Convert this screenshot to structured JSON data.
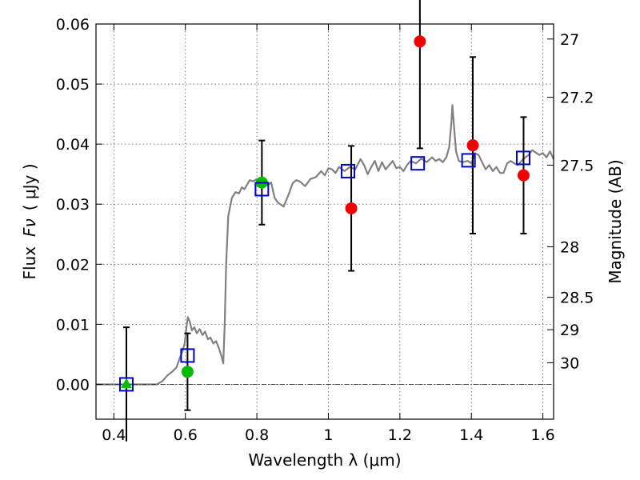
{
  "chart_data": {
    "type": "scatter",
    "xlabel": "Wavelength  λ (μm)",
    "ylabel_left": {
      "text": "Flux",
      "symbol": "Fν",
      "unit": "( μJy )"
    },
    "ylabel_right": "Magnitude (AB)",
    "xlim": [
      0.35,
      1.63
    ],
    "ylim": [
      -0.0058,
      0.06
    ],
    "grid": true,
    "x_ticks": [
      {
        "value": 0.4,
        "label": "0.4"
      },
      {
        "value": 0.6,
        "label": "0.6"
      },
      {
        "value": 0.8,
        "label": "0.8"
      },
      {
        "value": 1.0,
        "label": "1"
      },
      {
        "value": 1.2,
        "label": "1.2"
      },
      {
        "value": 1.4,
        "label": "1.4"
      },
      {
        "value": 1.6,
        "label": "1.6"
      }
    ],
    "y_ticks": [
      {
        "value": 0.0,
        "label": "0.00"
      },
      {
        "value": 0.01,
        "label": "0.01"
      },
      {
        "value": 0.02,
        "label": "0.02"
      },
      {
        "value": 0.03,
        "label": "0.03"
      },
      {
        "value": 0.04,
        "label": "0.04"
      },
      {
        "value": 0.05,
        "label": "0.05"
      },
      {
        "value": 0.06,
        "label": "0.06"
      }
    ],
    "right_ticks": [
      {
        "flux": 0.0575,
        "label": "27"
      },
      {
        "flux": 0.0478,
        "label": "27.2"
      },
      {
        "flux": 0.0365,
        "label": "27.5"
      },
      {
        "flux": 0.0229,
        "label": "28"
      },
      {
        "flux": 0.0145,
        "label": "28.5"
      },
      {
        "flux": 0.0091,
        "label": "29"
      },
      {
        "flux": 0.0036,
        "label": "30"
      }
    ],
    "colors": {
      "sed": "#808080",
      "model": "#0000cc",
      "red": "#ee0000",
      "green": "#00bb00",
      "error": "#000000",
      "grid": "#555555"
    },
    "sed_model_curve": [
      [
        0.35,
        0.0
      ],
      [
        0.52,
        0.0
      ],
      [
        0.535,
        0.0005
      ],
      [
        0.55,
        0.0015
      ],
      [
        0.565,
        0.0022
      ],
      [
        0.575,
        0.0028
      ],
      [
        0.585,
        0.0045
      ],
      [
        0.592,
        0.0055
      ],
      [
        0.598,
        0.0068
      ],
      [
        0.603,
        0.0095
      ],
      [
        0.607,
        0.0112
      ],
      [
        0.612,
        0.0105
      ],
      [
        0.618,
        0.009
      ],
      [
        0.625,
        0.0095
      ],
      [
        0.632,
        0.0085
      ],
      [
        0.64,
        0.0092
      ],
      [
        0.648,
        0.0082
      ],
      [
        0.655,
        0.0088
      ],
      [
        0.663,
        0.0075
      ],
      [
        0.67,
        0.0078
      ],
      [
        0.678,
        0.0068
      ],
      [
        0.686,
        0.0072
      ],
      [
        0.695,
        0.0058
      ],
      [
        0.702,
        0.0045
      ],
      [
        0.706,
        0.0035
      ],
      [
        0.71,
        0.01
      ],
      [
        0.714,
        0.02
      ],
      [
        0.72,
        0.028
      ],
      [
        0.73,
        0.031
      ],
      [
        0.74,
        0.032
      ],
      [
        0.75,
        0.0318
      ],
      [
        0.758,
        0.0328
      ],
      [
        0.765,
        0.0325
      ],
      [
        0.772,
        0.0332
      ],
      [
        0.78,
        0.034
      ],
      [
        0.79,
        0.0338
      ],
      [
        0.8,
        0.0342
      ],
      [
        0.81,
        0.0336
      ],
      [
        0.82,
        0.0342
      ],
      [
        0.83,
        0.0332
      ],
      [
        0.84,
        0.0336
      ],
      [
        0.85,
        0.031
      ],
      [
        0.86,
        0.0302
      ],
      [
        0.875,
        0.0296
      ],
      [
        0.89,
        0.0318
      ],
      [
        0.9,
        0.0335
      ],
      [
        0.91,
        0.034
      ],
      [
        0.92,
        0.0338
      ],
      [
        0.935,
        0.033
      ],
      [
        0.95,
        0.0342
      ],
      [
        0.965,
        0.0345
      ],
      [
        0.98,
        0.0355
      ],
      [
        0.99,
        0.0348
      ],
      [
        1.0,
        0.036
      ],
      [
        1.01,
        0.0358
      ],
      [
        1.02,
        0.0352
      ],
      [
        1.03,
        0.0362
      ],
      [
        1.045,
        0.0355
      ],
      [
        1.06,
        0.0362
      ],
      [
        1.075,
        0.0358
      ],
      [
        1.09,
        0.0375
      ],
      [
        1.1,
        0.0365
      ],
      [
        1.11,
        0.035
      ],
      [
        1.12,
        0.0362
      ],
      [
        1.13,
        0.0372
      ],
      [
        1.14,
        0.0355
      ],
      [
        1.15,
        0.037
      ],
      [
        1.16,
        0.0358
      ],
      [
        1.17,
        0.0365
      ],
      [
        1.18,
        0.0372
      ],
      [
        1.19,
        0.036
      ],
      [
        1.2,
        0.0362
      ],
      [
        1.21,
        0.0355
      ],
      [
        1.22,
        0.0365
      ],
      [
        1.23,
        0.0372
      ],
      [
        1.245,
        0.0368
      ],
      [
        1.26,
        0.0376
      ],
      [
        1.275,
        0.037
      ],
      [
        1.29,
        0.0378
      ],
      [
        1.3,
        0.0372
      ],
      [
        1.31,
        0.0375
      ],
      [
        1.32,
        0.037
      ],
      [
        1.33,
        0.0378
      ],
      [
        1.338,
        0.0395
      ],
      [
        1.344,
        0.0435
      ],
      [
        1.347,
        0.0465
      ],
      [
        1.352,
        0.0425
      ],
      [
        1.357,
        0.0388
      ],
      [
        1.365,
        0.0372
      ],
      [
        1.375,
        0.037
      ],
      [
        1.39,
        0.0372
      ],
      [
        1.4,
        0.0368
      ],
      [
        1.41,
        0.0385
      ],
      [
        1.42,
        0.0382
      ],
      [
        1.43,
        0.037
      ],
      [
        1.44,
        0.0358
      ],
      [
        1.45,
        0.0365
      ],
      [
        1.46,
        0.0355
      ],
      [
        1.47,
        0.0362
      ],
      [
        1.48,
        0.0352
      ],
      [
        1.49,
        0.0352
      ],
      [
        1.5,
        0.0368
      ],
      [
        1.51,
        0.0372
      ],
      [
        1.52,
        0.0368
      ],
      [
        1.53,
        0.0365
      ],
      [
        1.545,
        0.0375
      ],
      [
        1.56,
        0.0382
      ],
      [
        1.57,
        0.039
      ],
      [
        1.58,
        0.0386
      ],
      [
        1.59,
        0.0382
      ],
      [
        1.6,
        0.0385
      ],
      [
        1.61,
        0.0378
      ],
      [
        1.62,
        0.0388
      ],
      [
        1.63,
        0.0375
      ]
    ],
    "model_photometry": [
      {
        "x": 0.435,
        "y": 0.0
      },
      {
        "x": 0.606,
        "y": 0.0048
      },
      {
        "x": 0.814,
        "y": 0.0325
      },
      {
        "x": 1.055,
        "y": 0.0355
      },
      {
        "x": 1.25,
        "y": 0.0368
      },
      {
        "x": 1.392,
        "y": 0.0373
      },
      {
        "x": 1.545,
        "y": 0.0377
      }
    ],
    "observed_photometry": [
      {
        "x": 0.435,
        "y": 0.0,
        "yerr": 0.0095,
        "color": "green",
        "marker": "triangle",
        "lower_cap": false
      },
      {
        "x": 0.606,
        "y": 0.0021,
        "yerr": 0.0064,
        "color": "green",
        "marker": "circle",
        "lower_cap": true
      },
      {
        "x": 0.814,
        "y": 0.0336,
        "yerr": 0.007,
        "color": "green",
        "marker": "circle",
        "lower_cap": true
      },
      {
        "x": 1.064,
        "y": 0.0293,
        "yerr": 0.0104,
        "color": "red",
        "marker": "circle",
        "lower_cap": true
      },
      {
        "x": 1.256,
        "y": 0.0571,
        "yerr": 0.0178,
        "color": "red",
        "marker": "circle",
        "lower_cap": true
      },
      {
        "x": 1.404,
        "y": 0.0398,
        "yerr": 0.0147,
        "color": "red",
        "marker": "circle",
        "lower_cap": true
      },
      {
        "x": 1.546,
        "y": 0.0348,
        "yerr": 0.0097,
        "color": "red",
        "marker": "circle",
        "lower_cap": true
      }
    ]
  }
}
